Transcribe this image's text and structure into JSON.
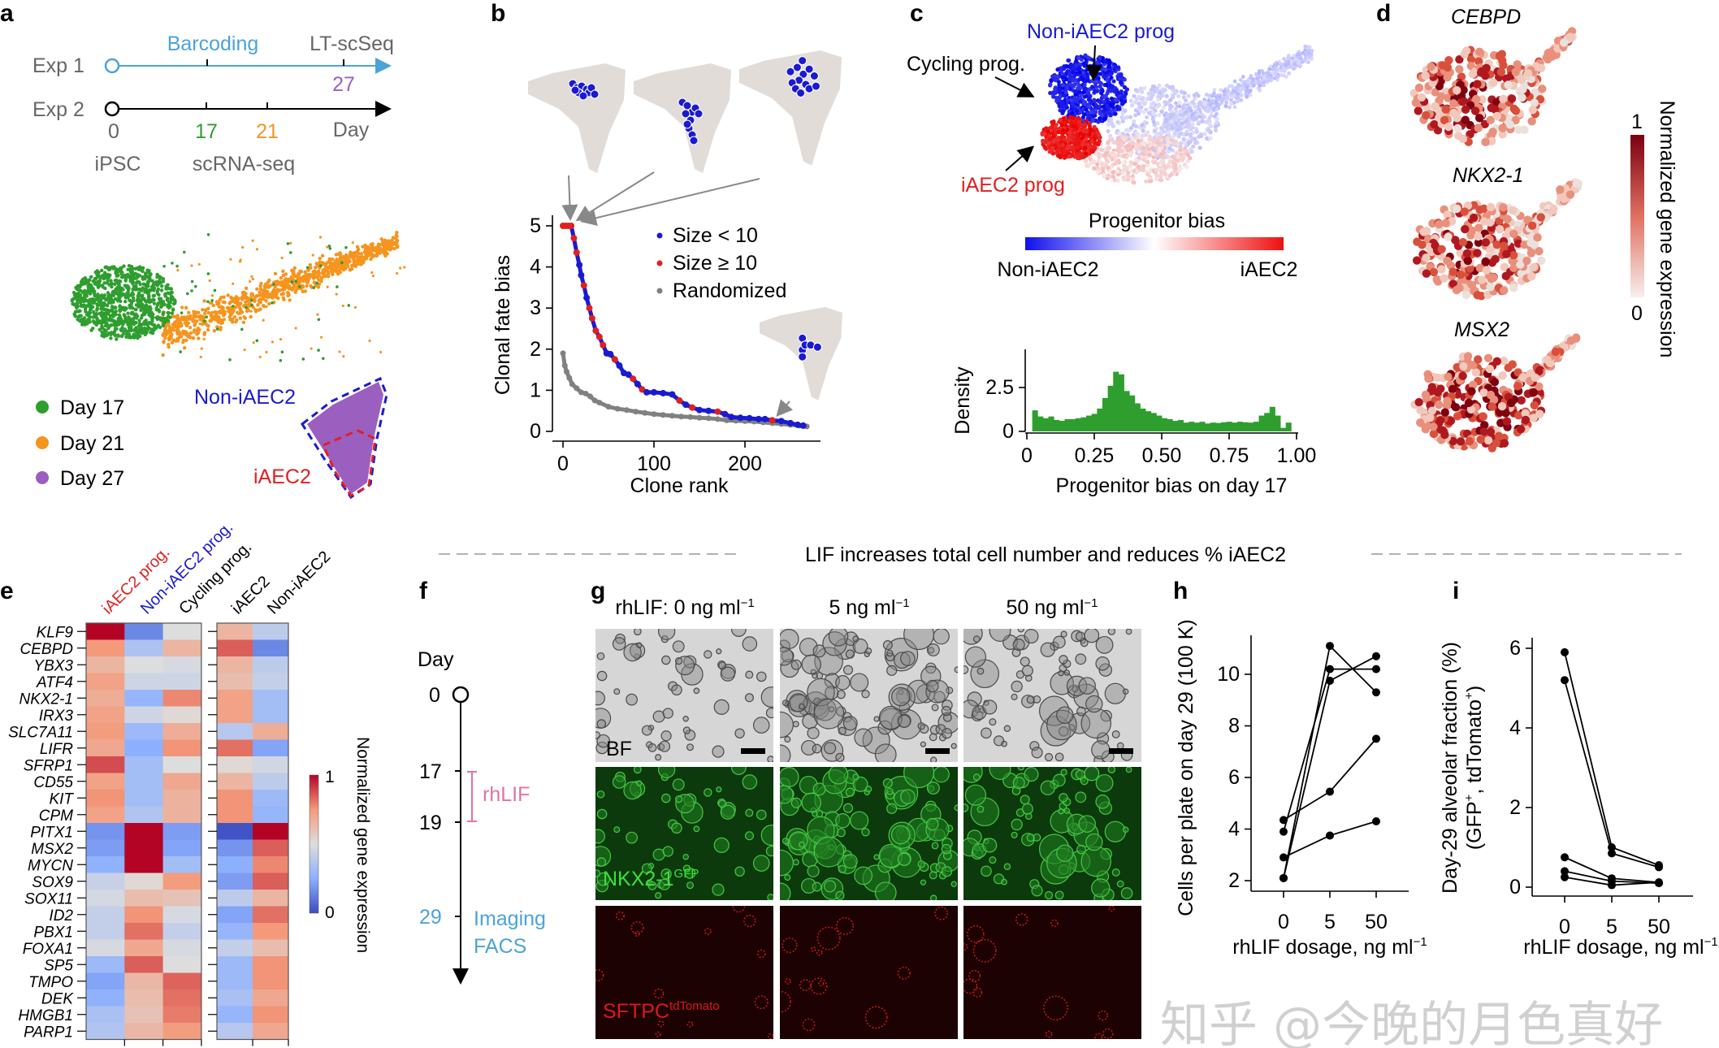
{
  "colors": {
    "exp1": "#4ba3d8",
    "day17": "#2e9e2e",
    "day21": "#f5941e",
    "day27": "#9b5fc0",
    "noniaec2": "#1a1ad0",
    "iaec2": "#e02020",
    "rhlif": "#e3739f",
    "imaging": "#4ba3d8"
  },
  "panel_a": {
    "letter": "a",
    "exp1": "Exp 1",
    "exp2": "Exp 2",
    "barcoding": "Barcoding",
    "ltscseq": "LT-scSeq",
    "day27": "27",
    "day0": "0",
    "day17": "17",
    "day21": "21",
    "day_label": "Day",
    "ipsc": "iPSC",
    "scrnaseq": "scRNA-seq",
    "legend": [
      {
        "label": "Day 17",
        "color": "#2e9e2e"
      },
      {
        "label": "Day 21",
        "color": "#f5941e"
      },
      {
        "label": "Day 27",
        "color": "#9b5fc0"
      }
    ],
    "non_iaec2": "Non-iAEC2",
    "iaec2": "iAEC2"
  },
  "panel_b": {
    "letter": "b"
  },
  "panel_c": {
    "letter": "c",
    "non_iaec2_prog": "Non-iAEC2 prog",
    "cycling_prog": "Cycling prog.",
    "iaec2_prog": "iAEC2 prog",
    "colorbar_title": "Progenitor bias",
    "colorbar_left": "Non-iAEC2",
    "colorbar_right": "iAEC2"
  },
  "panel_d": {
    "letter": "d",
    "genes": [
      "CEBPD",
      "NKX2-1",
      "MSX2"
    ],
    "colorbar_max": "1",
    "colorbar_min": "0",
    "colorbar_label": "Normalized gene expression"
  },
  "section_title": "LIF increases total cell number and reduces % iAEC2",
  "panel_e": {
    "letter": "e",
    "colorbar_max": "1",
    "colorbar_min": "0",
    "colorbar_label": "Normalized gene expression"
  },
  "panel_f": {
    "letter": "f",
    "day_label": "Day",
    "days": [
      "0",
      "17",
      "19",
      "29"
    ],
    "rhlif": "rhLIF",
    "imaging": "Imaging",
    "facs": "FACS"
  },
  "panel_g": {
    "letter": "g",
    "columns": [
      {
        "prefix": "rhLIF: 0 ng ml",
        "sup": "−1"
      },
      {
        "prefix": "5 ng ml",
        "sup": "−1"
      },
      {
        "prefix": "50 ng ml",
        "sup": "−1"
      }
    ],
    "rows": [
      {
        "label": "BF",
        "sup": ""
      },
      {
        "label": "NKX2-1",
        "sup": "GFP"
      },
      {
        "label": "SFTPC",
        "sup": "tdTomato"
      }
    ]
  },
  "panel_h": {
    "letter": "h"
  },
  "panel_i": {
    "letter": "i"
  },
  "watermark": "知乎 @今晚的月色真好",
  "chart_data": [
    {
      "id": "b",
      "type": "scatter",
      "xlabel": "Clone rank",
      "ylabel": "Clonal fate bias",
      "xlim": [
        0,
        270
      ],
      "ylim": [
        0,
        5
      ],
      "xticks": [
        "0",
        "100",
        "200"
      ],
      "xtick_values": [
        0,
        100,
        200
      ],
      "yticks": [
        "0",
        "1",
        "2",
        "3",
        "4",
        "5"
      ],
      "ytick_values": [
        0,
        1,
        2,
        3,
        4,
        5
      ],
      "legend": [
        {
          "label": "Size < 10",
          "color": "#1a1ad0"
        },
        {
          "label": "Size ≥ 10",
          "color": "#e02020"
        },
        {
          "label": "Randomized",
          "color": "#808080"
        }
      ],
      "legend_position": "top-right",
      "observed": [
        [
          0,
          5,
          "≥10"
        ],
        [
          3,
          5,
          "≥10"
        ],
        [
          6,
          5,
          "≥10"
        ],
        [
          9,
          5,
          "≥10"
        ],
        [
          12,
          4.7,
          "≥10"
        ],
        [
          15,
          4.35,
          "≥10"
        ],
        [
          18,
          4.05,
          "<10"
        ],
        [
          20,
          3.8,
          "<10"
        ],
        [
          23,
          3.55,
          "≥10"
        ],
        [
          26,
          3.25,
          "<10"
        ],
        [
          29,
          3.0,
          "≥10"
        ],
        [
          32,
          2.75,
          "≥10"
        ],
        [
          36,
          2.45,
          "≥10"
        ],
        [
          40,
          2.3,
          "≥10"
        ],
        [
          44,
          2.1,
          "≥10"
        ],
        [
          48,
          1.9,
          "<10"
        ],
        [
          52,
          1.88,
          "<10"
        ],
        [
          57,
          1.75,
          "≥10"
        ],
        [
          62,
          1.6,
          "<10"
        ],
        [
          67,
          1.42,
          "<10"
        ],
        [
          72,
          1.38,
          "<10"
        ],
        [
          77,
          1.28,
          "≥10"
        ],
        [
          82,
          1.15,
          "<10"
        ],
        [
          87,
          1.02,
          "≥10"
        ],
        [
          92,
          0.95,
          "<10"
        ],
        [
          100,
          0.95,
          "<10"
        ],
        [
          110,
          0.93,
          "<10"
        ],
        [
          120,
          0.9,
          "<10"
        ],
        [
          128,
          0.75,
          "≥10"
        ],
        [
          135,
          0.65,
          "<10"
        ],
        [
          142,
          0.58,
          "≥10"
        ],
        [
          150,
          0.52,
          "<10"
        ],
        [
          160,
          0.5,
          "<10"
        ],
        [
          170,
          0.48,
          "≥10"
        ],
        [
          178,
          0.42,
          "<10"
        ],
        [
          185,
          0.35,
          "<10"
        ],
        [
          195,
          0.33,
          "<10"
        ],
        [
          205,
          0.32,
          "<10"
        ],
        [
          215,
          0.3,
          "<10"
        ],
        [
          222,
          0.3,
          "<10"
        ],
        [
          230,
          0.27,
          "≥10"
        ],
        [
          240,
          0.25,
          "<10"
        ],
        [
          250,
          0.2,
          "<10"
        ],
        [
          258,
          0.16,
          "<10"
        ],
        [
          264,
          0.14,
          "<10"
        ]
      ],
      "randomized": [
        [
          0,
          1.9
        ],
        [
          2,
          1.6
        ],
        [
          4,
          1.45
        ],
        [
          7,
          1.3
        ],
        [
          10,
          1.15
        ],
        [
          15,
          1.05
        ],
        [
          20,
          0.95
        ],
        [
          25,
          0.92
        ],
        [
          30,
          0.85
        ],
        [
          35,
          0.75
        ],
        [
          40,
          0.7
        ],
        [
          50,
          0.6
        ],
        [
          60,
          0.55
        ],
        [
          70,
          0.52
        ],
        [
          80,
          0.48
        ],
        [
          90,
          0.45
        ],
        [
          100,
          0.42
        ],
        [
          110,
          0.4
        ],
        [
          120,
          0.38
        ],
        [
          130,
          0.36
        ],
        [
          140,
          0.35
        ],
        [
          150,
          0.33
        ],
        [
          160,
          0.32
        ],
        [
          170,
          0.3
        ],
        [
          180,
          0.27
        ],
        [
          190,
          0.26
        ],
        [
          200,
          0.25
        ],
        [
          210,
          0.24
        ],
        [
          220,
          0.22
        ],
        [
          230,
          0.2
        ],
        [
          240,
          0.18
        ],
        [
          250,
          0.16
        ],
        [
          260,
          0.14
        ],
        [
          268,
          0.12
        ]
      ]
    },
    {
      "id": "c-hist",
      "type": "bar",
      "xlabel": "Progenitor bias on day 17",
      "ylabel": "Density",
      "xlim": [
        0,
        1
      ],
      "ylim": [
        0,
        3.5
      ],
      "xticks": [
        "0",
        "0.25",
        "0.50",
        "0.75",
        "1.00"
      ],
      "xtick_values": [
        0,
        0.25,
        0.5,
        0.75,
        1
      ],
      "yticks": [
        "0",
        "2.5"
      ],
      "ytick_values": [
        0,
        2.5
      ],
      "bin_width": 0.02,
      "bin_starts": [
        0.02,
        0.04,
        0.06,
        0.08,
        0.1,
        0.12,
        0.14,
        0.16,
        0.18,
        0.2,
        0.22,
        0.24,
        0.26,
        0.28,
        0.3,
        0.32,
        0.34,
        0.36,
        0.38,
        0.4,
        0.42,
        0.44,
        0.46,
        0.48,
        0.5,
        0.52,
        0.54,
        0.56,
        0.58,
        0.6,
        0.62,
        0.64,
        0.66,
        0.68,
        0.7,
        0.72,
        0.74,
        0.76,
        0.78,
        0.8,
        0.82,
        0.84,
        0.86,
        0.88,
        0.9,
        0.92,
        0.94,
        0.96
      ],
      "values": [
        1.2,
        0.85,
        0.75,
        0.85,
        0.65,
        0.6,
        0.7,
        0.7,
        0.75,
        0.8,
        0.9,
        1.0,
        1.3,
        1.9,
        2.6,
        3.4,
        3.25,
        2.3,
        2.05,
        1.6,
        1.3,
        1.15,
        1.05,
        0.9,
        0.75,
        0.7,
        0.6,
        0.65,
        0.5,
        0.55,
        0.5,
        0.55,
        0.45,
        0.5,
        0.48,
        0.52,
        0.55,
        0.5,
        0.55,
        0.52,
        0.5,
        0.55,
        0.9,
        1.05,
        1.4,
        0.9,
        0.2,
        0.5
      ],
      "color": "#2e9e2e"
    },
    {
      "id": "e",
      "type": "heatmap",
      "column_groups": [
        {
          "columns": [
            {
              "label": "iAEC2 prog.",
              "color": "#e02020"
            },
            {
              "label": "Non-iAEC2 prog.",
              "color": "#1a1ad0"
            },
            {
              "label": "Cycling prog.",
              "color": "#000000"
            }
          ]
        },
        {
          "columns": [
            {
              "label": "iAEC2",
              "color": "#000000"
            },
            {
              "label": "Non-iAEC2",
              "color": "#000000"
            }
          ]
        }
      ],
      "rows": [
        "KLF9",
        "CEBPD",
        "YBX3",
        "ATF4",
        "NKX2-1",
        "IRX3",
        "SLC7A11",
        "LIFR",
        "SFRP1",
        "CD55",
        "KIT",
        "CPM",
        "PITX1",
        "MSX2",
        "MYCN",
        "SOX9",
        "SOX11",
        "ID2",
        "PBX1",
        "FOXA1",
        "SP5",
        "TMPO",
        "DEK",
        "HMGB1",
        "PARP1"
      ],
      "values_progenitors": [
        [
          1.0,
          0.15,
          0.5
        ],
        [
          0.75,
          0.35,
          0.65
        ],
        [
          0.65,
          0.5,
          0.48
        ],
        [
          0.72,
          0.45,
          0.45
        ],
        [
          0.68,
          0.28,
          0.78
        ],
        [
          0.72,
          0.45,
          0.52
        ],
        [
          0.74,
          0.3,
          0.68
        ],
        [
          0.7,
          0.25,
          0.76
        ],
        [
          0.88,
          0.32,
          0.5
        ],
        [
          0.72,
          0.32,
          0.7
        ],
        [
          0.76,
          0.32,
          0.66
        ],
        [
          0.72,
          0.36,
          0.66
        ],
        [
          0.18,
          1.0,
          0.2
        ],
        [
          0.2,
          1.0,
          0.22
        ],
        [
          0.26,
          1.0,
          0.32
        ],
        [
          0.43,
          0.52,
          0.74
        ],
        [
          0.47,
          0.62,
          0.6
        ],
        [
          0.42,
          0.76,
          0.48
        ],
        [
          0.42,
          0.82,
          0.42
        ],
        [
          0.48,
          0.7,
          0.48
        ],
        [
          0.3,
          0.85,
          0.5
        ],
        [
          0.22,
          0.64,
          0.84
        ],
        [
          0.26,
          0.62,
          0.82
        ],
        [
          0.34,
          0.6,
          0.8
        ],
        [
          0.36,
          0.64,
          0.74
        ]
      ],
      "values_fates": [
        [
          0.65,
          0.4
        ],
        [
          0.85,
          0.15
        ],
        [
          0.65,
          0.4
        ],
        [
          0.62,
          0.42
        ],
        [
          0.72,
          0.32
        ],
        [
          0.72,
          0.32
        ],
        [
          0.38,
          0.68
        ],
        [
          0.82,
          0.22
        ],
        [
          0.52,
          0.46
        ],
        [
          0.65,
          0.4
        ],
        [
          0.76,
          0.3
        ],
        [
          0.76,
          0.28
        ],
        [
          0.02,
          1.0
        ],
        [
          0.18,
          0.85
        ],
        [
          0.25,
          0.78
        ],
        [
          0.2,
          0.85
        ],
        [
          0.4,
          0.65
        ],
        [
          0.22,
          0.82
        ],
        [
          0.28,
          0.75
        ],
        [
          0.42,
          0.62
        ],
        [
          0.3,
          0.76
        ],
        [
          0.3,
          0.76
        ],
        [
          0.34,
          0.7
        ],
        [
          0.28,
          0.76
        ],
        [
          0.38,
          0.7
        ]
      ],
      "colorscale": [
        "#3b4cc0",
        "#8db0fe",
        "#dddddd",
        "#f49a7b",
        "#b40426"
      ],
      "range": [
        0,
        1
      ]
    },
    {
      "id": "h",
      "type": "line",
      "xlabel": "rhLIF dosage, ng ml",
      "xlabel_sup": "−1",
      "ylabel": "Cells per plate on day 29 (100 K)",
      "categories": [
        "0",
        "5",
        "50"
      ],
      "ylim": [
        1.5,
        11.5
      ],
      "yticks": [
        "2",
        "4",
        "6",
        "8",
        "10"
      ],
      "ytick_values": [
        2,
        4,
        6,
        8,
        10
      ],
      "series": [
        {
          "values": [
            4.35,
            5.45,
            7.5
          ]
        },
        {
          "values": [
            2.9,
            3.75,
            4.3
          ]
        },
        {
          "values": [
            2.1,
            11.1,
            9.3
          ]
        },
        {
          "values": [
            2.1,
            9.75,
            10.7
          ]
        },
        {
          "values": [
            3.9,
            10.2,
            10.2
          ]
        }
      ]
    },
    {
      "id": "i",
      "type": "line",
      "xlabel": "rhLIF dosage, ng ml",
      "xlabel_sup": "−1",
      "ylabel": "Day-29 alveolar fraction (%)",
      "ylabel2_prefix": "(GFP",
      "ylabel2_sup1": "+",
      "ylabel2_mid": ", tdTomato",
      "ylabel2_sup2": "+",
      "ylabel2_suffix": ")",
      "categories": [
        "0",
        "5",
        "50"
      ],
      "ylim": [
        -0.2,
        6.3
      ],
      "yticks": [
        "0",
        "2",
        "4",
        "6"
      ],
      "ytick_values": [
        0,
        2,
        4,
        6
      ],
      "series": [
        {
          "values": [
            5.9,
            1.0,
            0.55
          ]
        },
        {
          "values": [
            5.2,
            0.85,
            0.5
          ]
        },
        {
          "values": [
            0.75,
            0.22,
            0.12
          ]
        },
        {
          "values": [
            0.4,
            0.15,
            0.1
          ]
        },
        {
          "values": [
            0.25,
            0.05,
            0.12
          ]
        }
      ]
    }
  ]
}
